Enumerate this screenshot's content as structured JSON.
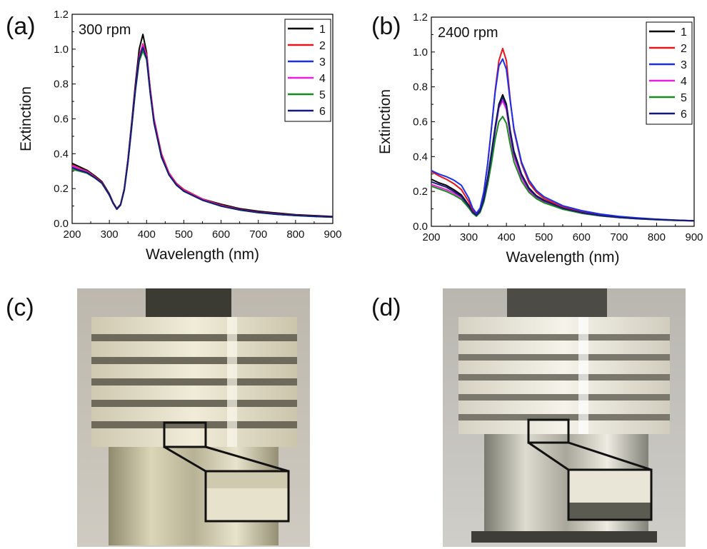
{
  "panels": {
    "a": "(a)",
    "b": "(b)",
    "c": "(c)",
    "d": "(d)"
  },
  "colors": {
    "1": "#000000",
    "2": "#e8141c",
    "3": "#1a2ff0",
    "4": "#e81ee0",
    "5": "#168a1e",
    "6": "#15197a"
  },
  "chart_data": [
    {
      "type": "line",
      "annotation": "300 rpm",
      "xlabel": "Wavelength (nm)",
      "ylabel": "Extinction",
      "xlim": [
        200,
        900
      ],
      "ylim": [
        0.0,
        1.2
      ],
      "xticks": [
        200,
        300,
        400,
        500,
        600,
        700,
        800,
        900
      ],
      "yticks": [
        0.0,
        0.2,
        0.4,
        0.6,
        0.8,
        1.0,
        1.2
      ],
      "ytick_labels": [
        "0.0",
        "0.2",
        "0.4",
        "0.6",
        "0.8",
        "1.0",
        "1.2"
      ],
      "legend_position": "top-right",
      "x": [
        200,
        220,
        240,
        260,
        280,
        300,
        310,
        320,
        330,
        340,
        350,
        360,
        370,
        380,
        390,
        400,
        410,
        420,
        440,
        460,
        480,
        500,
        550,
        600,
        650,
        700,
        750,
        800,
        850,
        900
      ],
      "series": [
        {
          "name": "1",
          "values": [
            0.345,
            0.325,
            0.305,
            0.275,
            0.24,
            0.17,
            0.12,
            0.085,
            0.11,
            0.2,
            0.37,
            0.58,
            0.8,
            1.0,
            1.085,
            0.98,
            0.76,
            0.58,
            0.38,
            0.28,
            0.225,
            0.19,
            0.14,
            0.11,
            0.085,
            0.07,
            0.06,
            0.05,
            0.045,
            0.04
          ]
        },
        {
          "name": "2",
          "values": [
            0.335,
            0.315,
            0.3,
            0.27,
            0.235,
            0.165,
            0.118,
            0.083,
            0.108,
            0.195,
            0.36,
            0.565,
            0.78,
            0.96,
            1.03,
            0.97,
            0.77,
            0.6,
            0.4,
            0.29,
            0.23,
            0.195,
            0.14,
            0.105,
            0.08,
            0.065,
            0.055,
            0.047,
            0.042,
            0.038
          ]
        },
        {
          "name": "3",
          "values": [
            0.325,
            0.31,
            0.295,
            0.265,
            0.232,
            0.163,
            0.116,
            0.082,
            0.106,
            0.193,
            0.355,
            0.56,
            0.77,
            0.95,
            1.02,
            0.95,
            0.75,
            0.58,
            0.385,
            0.28,
            0.22,
            0.185,
            0.135,
            0.1,
            0.078,
            0.063,
            0.053,
            0.046,
            0.041,
            0.037
          ]
        },
        {
          "name": "4",
          "values": [
            0.33,
            0.312,
            0.297,
            0.267,
            0.233,
            0.164,
            0.117,
            0.083,
            0.107,
            0.194,
            0.357,
            0.562,
            0.775,
            0.955,
            1.025,
            0.96,
            0.76,
            0.59,
            0.39,
            0.285,
            0.225,
            0.19,
            0.137,
            0.102,
            0.079,
            0.064,
            0.054,
            0.046,
            0.041,
            0.037
          ]
        },
        {
          "name": "5",
          "values": [
            0.31,
            0.3,
            0.288,
            0.262,
            0.23,
            0.162,
            0.115,
            0.081,
            0.105,
            0.19,
            0.35,
            0.55,
            0.76,
            0.93,
            0.99,
            0.94,
            0.74,
            0.575,
            0.38,
            0.278,
            0.22,
            0.184,
            0.133,
            0.099,
            0.077,
            0.062,
            0.052,
            0.045,
            0.04,
            0.036
          ]
        },
        {
          "name": "6",
          "values": [
            0.32,
            0.305,
            0.292,
            0.264,
            0.231,
            0.163,
            0.116,
            0.082,
            0.106,
            0.192,
            0.353,
            0.556,
            0.768,
            0.945,
            1.01,
            0.948,
            0.748,
            0.578,
            0.383,
            0.279,
            0.221,
            0.186,
            0.134,
            0.1,
            0.078,
            0.063,
            0.053,
            0.046,
            0.041,
            0.037
          ]
        }
      ]
    },
    {
      "type": "line",
      "annotation": "2400 rpm",
      "xlabel": "Wavelength (nm)",
      "ylabel": "Extinction",
      "xlim": [
        200,
        900
      ],
      "ylim": [
        0.0,
        1.2
      ],
      "xticks": [
        200,
        300,
        400,
        500,
        600,
        700,
        800,
        900
      ],
      "yticks": [
        0.0,
        0.2,
        0.4,
        0.6,
        0.8,
        1.0,
        1.2
      ],
      "ytick_labels": [
        "0.0",
        "0.2",
        "0.4",
        "0.6",
        "0.8",
        "1.0",
        "1.2"
      ],
      "legend_position": "top-right",
      "x": [
        200,
        220,
        240,
        260,
        280,
        300,
        310,
        320,
        330,
        340,
        350,
        360,
        370,
        380,
        390,
        400,
        410,
        420,
        440,
        460,
        480,
        500,
        550,
        600,
        650,
        700,
        750,
        800,
        850,
        900
      ],
      "series": [
        {
          "name": "1",
          "values": [
            0.27,
            0.25,
            0.235,
            0.21,
            0.18,
            0.12,
            0.085,
            0.065,
            0.09,
            0.16,
            0.28,
            0.42,
            0.57,
            0.7,
            0.755,
            0.7,
            0.55,
            0.43,
            0.3,
            0.22,
            0.175,
            0.15,
            0.105,
            0.08,
            0.063,
            0.052,
            0.045,
            0.04,
            0.035,
            0.032
          ]
        },
        {
          "name": "2",
          "values": [
            0.315,
            0.29,
            0.27,
            0.245,
            0.21,
            0.14,
            0.095,
            0.07,
            0.1,
            0.2,
            0.36,
            0.56,
            0.78,
            0.95,
            1.02,
            0.95,
            0.73,
            0.55,
            0.36,
            0.25,
            0.195,
            0.16,
            0.11,
            0.085,
            0.066,
            0.054,
            0.046,
            0.04,
            0.035,
            0.031
          ]
        },
        {
          "name": "3",
          "values": [
            0.32,
            0.3,
            0.285,
            0.265,
            0.235,
            0.16,
            0.105,
            0.075,
            0.105,
            0.2,
            0.36,
            0.56,
            0.77,
            0.92,
            0.96,
            0.9,
            0.72,
            0.56,
            0.37,
            0.265,
            0.205,
            0.17,
            0.118,
            0.09,
            0.07,
            0.057,
            0.048,
            0.041,
            0.036,
            0.032
          ]
        },
        {
          "name": "4",
          "values": [
            0.24,
            0.225,
            0.21,
            0.19,
            0.165,
            0.11,
            0.078,
            0.06,
            0.083,
            0.15,
            0.26,
            0.4,
            0.55,
            0.68,
            0.72,
            0.67,
            0.52,
            0.4,
            0.28,
            0.205,
            0.165,
            0.14,
            0.1,
            0.075,
            0.06,
            0.05,
            0.043,
            0.038,
            0.034,
            0.031
          ]
        },
        {
          "name": "5",
          "values": [
            0.23,
            0.215,
            0.2,
            0.18,
            0.155,
            0.105,
            0.075,
            0.058,
            0.08,
            0.14,
            0.24,
            0.36,
            0.5,
            0.6,
            0.63,
            0.59,
            0.47,
            0.37,
            0.26,
            0.195,
            0.158,
            0.135,
            0.098,
            0.075,
            0.06,
            0.05,
            0.043,
            0.038,
            0.034,
            0.031
          ]
        },
        {
          "name": "6",
          "values": [
            0.255,
            0.24,
            0.225,
            0.2,
            0.172,
            0.115,
            0.082,
            0.063,
            0.088,
            0.155,
            0.27,
            0.41,
            0.56,
            0.69,
            0.74,
            0.69,
            0.54,
            0.42,
            0.295,
            0.215,
            0.172,
            0.147,
            0.104,
            0.079,
            0.062,
            0.051,
            0.044,
            0.039,
            0.035,
            0.032
          ]
        }
      ]
    }
  ]
}
